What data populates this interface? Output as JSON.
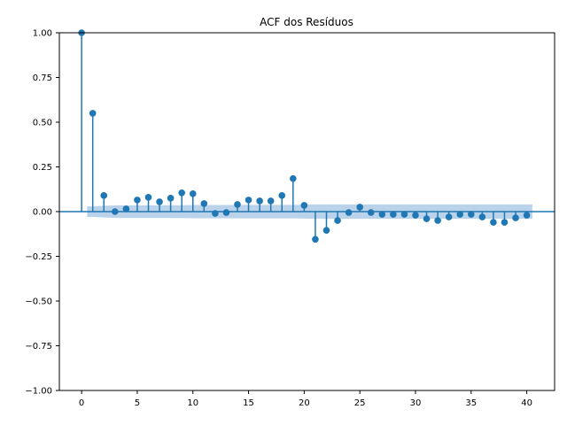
{
  "chart_data": {
    "type": "scatter",
    "subtype": "acf-stem",
    "title": "ACF dos Resíduos",
    "xlabel": "",
    "ylabel": "",
    "xlim": [
      -2,
      42.5
    ],
    "ylim": [
      -1.0,
      1.0
    ],
    "x_ticks": [
      0,
      5,
      10,
      15,
      20,
      25,
      30,
      35,
      40
    ],
    "y_ticks": [
      -1.0,
      -0.75,
      -0.5,
      -0.25,
      0.0,
      0.25,
      0.5,
      0.75,
      1.0
    ],
    "x_tick_labels": [
      "0",
      "5",
      "10",
      "15",
      "20",
      "25",
      "30",
      "35",
      "40"
    ],
    "y_tick_labels": [
      "−1.00",
      "−0.75",
      "−0.50",
      "−0.25",
      "0.00",
      "0.25",
      "0.50",
      "0.75",
      "1.00"
    ],
    "grid": false,
    "colors": {
      "stem": "#1f77b4",
      "confidence_band": "#aecbe6",
      "zero_line": "#1f77b4"
    },
    "lags": [
      0,
      1,
      2,
      3,
      4,
      5,
      6,
      7,
      8,
      9,
      10,
      11,
      12,
      13,
      14,
      15,
      16,
      17,
      18,
      19,
      20,
      21,
      22,
      23,
      24,
      25,
      26,
      27,
      28,
      29,
      30,
      31,
      32,
      33,
      34,
      35,
      36,
      37,
      38,
      39,
      40
    ],
    "values": [
      1.0,
      0.55,
      0.09,
      0.0,
      0.015,
      0.065,
      0.08,
      0.055,
      0.075,
      0.105,
      0.1,
      0.045,
      -0.01,
      -0.005,
      0.04,
      0.065,
      0.06,
      0.06,
      0.09,
      0.185,
      0.035,
      -0.155,
      -0.105,
      -0.05,
      -0.005,
      0.025,
      -0.005,
      -0.015,
      -0.015,
      -0.015,
      -0.02,
      -0.04,
      -0.05,
      -0.03,
      -0.015,
      -0.015,
      -0.03,
      -0.06,
      -0.06,
      -0.035,
      -0.02
    ],
    "confidence_band_upper": [
      0.03,
      0.03,
      0.033,
      0.035,
      0.035,
      0.035,
      0.035,
      0.035,
      0.036,
      0.036,
      0.037,
      0.037,
      0.037,
      0.037,
      0.038,
      0.038,
      0.038,
      0.038,
      0.038,
      0.038,
      0.039,
      0.04,
      0.04,
      0.04,
      0.04,
      0.04,
      0.04,
      0.04,
      0.04,
      0.04,
      0.04,
      0.04,
      0.04,
      0.04,
      0.04,
      0.04,
      0.04,
      0.04,
      0.04,
      0.04,
      0.04
    ]
  }
}
